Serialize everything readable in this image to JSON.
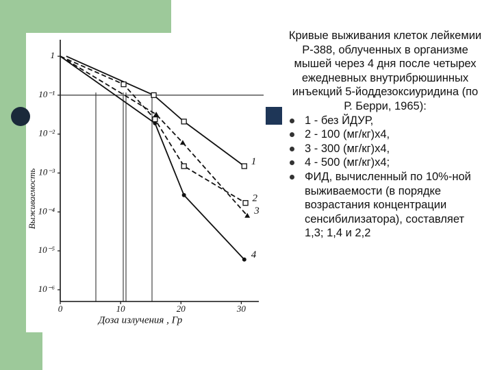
{
  "chart_data": {
    "type": "line",
    "y_label": "Выживаемость",
    "x_label": "Доза излучения , Гр",
    "xlim": [
      0,
      32
    ],
    "xticks": [
      0,
      10,
      20,
      30
    ],
    "ylim": [
      5e-07,
      2
    ],
    "log_y": true,
    "yticks": [
      1,
      {
        "value": 0.1,
        "label": "10⁻¹"
      },
      {
        "value": 0.01,
        "label": "10⁻²"
      },
      {
        "value": 0.001,
        "label": "10⁻³"
      },
      {
        "value": 0.0001,
        "label": "10⁻⁴"
      },
      {
        "value": 1e-05,
        "label": "10⁻⁵"
      },
      {
        "value": 1e-06,
        "label": "10⁻⁶"
      }
    ],
    "series": [
      {
        "name": "1",
        "color": "#111111",
        "dash": false,
        "marker": "square-open",
        "x": [
          1,
          15.5,
          20.5,
          30.5
        ],
        "values": [
          1,
          0.1,
          0.021,
          0.0015
        ]
      },
      {
        "name": "2",
        "color": "#111111",
        "dash": true,
        "marker": "square-open",
        "x": [
          0,
          10.5,
          15.7,
          20.5,
          30.7
        ],
        "values": [
          1,
          0.19,
          0.024,
          0.0015,
          0.00017
        ]
      },
      {
        "name": "3",
        "color": "#111111",
        "dash": true,
        "marker": "triangle",
        "x": [
          0,
          15.9,
          20.3,
          31
        ],
        "values": [
          1,
          0.032,
          0.006,
          8e-05
        ]
      },
      {
        "name": "4",
        "color": "#111111",
        "dash": false,
        "marker": "circle",
        "x": [
          0,
          15.7,
          20.5,
          30.5
        ],
        "values": [
          1,
          0.019,
          0.00027,
          6e-06
        ]
      }
    ]
  },
  "text": {
    "title": "Кривые выживания клеток лейкемии Р-388, облученных в организме мышей через 4 дня после четырех ежедневных внутрибрюшинных инъекций 5-йоддезоксиуридина (по Р. Берри, 1965):",
    "bullets": [
      "1 - без ЙДУР,",
      "2 - 100 (мг/кг)х4,",
      "3 - 300 (мг/кг)х4,",
      "4 - 500 (мг/кг)х4;",
      "ФИД, вычисленный по 10%-ной выживаемости (в порядке возрастания концентрации сенсибилизатора), составляет 1,3; 1,4 и 2,2"
    ]
  }
}
